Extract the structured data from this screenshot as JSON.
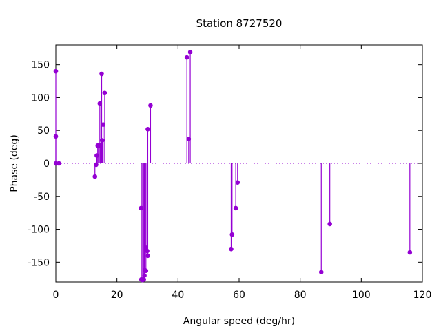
{
  "chart_data": {
    "type": "scatter",
    "style": "impulses-with-points",
    "title": "Station 8727520",
    "xlabel": "Angular speed (deg/hr)",
    "ylabel": "Phase (deg)",
    "xlim": [
      0,
      120
    ],
    "ylim": [
      -180,
      180
    ],
    "xticks": [
      0,
      20,
      40,
      60,
      80,
      100,
      120
    ],
    "yticks": [
      -150,
      -100,
      -50,
      0,
      50,
      100,
      150
    ],
    "grid": false,
    "zero_line": "dotted",
    "color": "#9400d3",
    "series": [
      {
        "x": [
          -0.1,
          0.0,
          0.04,
          0.08,
          1.0,
          12.8,
          13.2,
          13.4,
          13.7,
          14.0,
          14.4,
          14.6,
          15.0,
          15.2,
          15.5,
          16.0,
          27.9,
          28.0,
          28.4,
          28.8,
          29.0,
          29.1,
          29.5,
          29.5,
          29.9,
          30.1,
          30.1,
          31.0,
          42.9,
          43.5,
          44.0,
          57.4,
          57.7,
          58.9,
          59.5,
          86.9,
          89.7,
          115.9
        ],
        "y": [
          140,
          41,
          0,
          0,
          0,
          -20,
          -2,
          12,
          27,
          27,
          91,
          27,
          136,
          35,
          59,
          107,
          -68,
          -176,
          -177,
          -176,
          -170,
          -162,
          -163,
          -128,
          -133,
          -140,
          52,
          88,
          161,
          37,
          169,
          -130,
          -108,
          -68,
          -29,
          -165,
          -92,
          -135
        ]
      }
    ]
  }
}
